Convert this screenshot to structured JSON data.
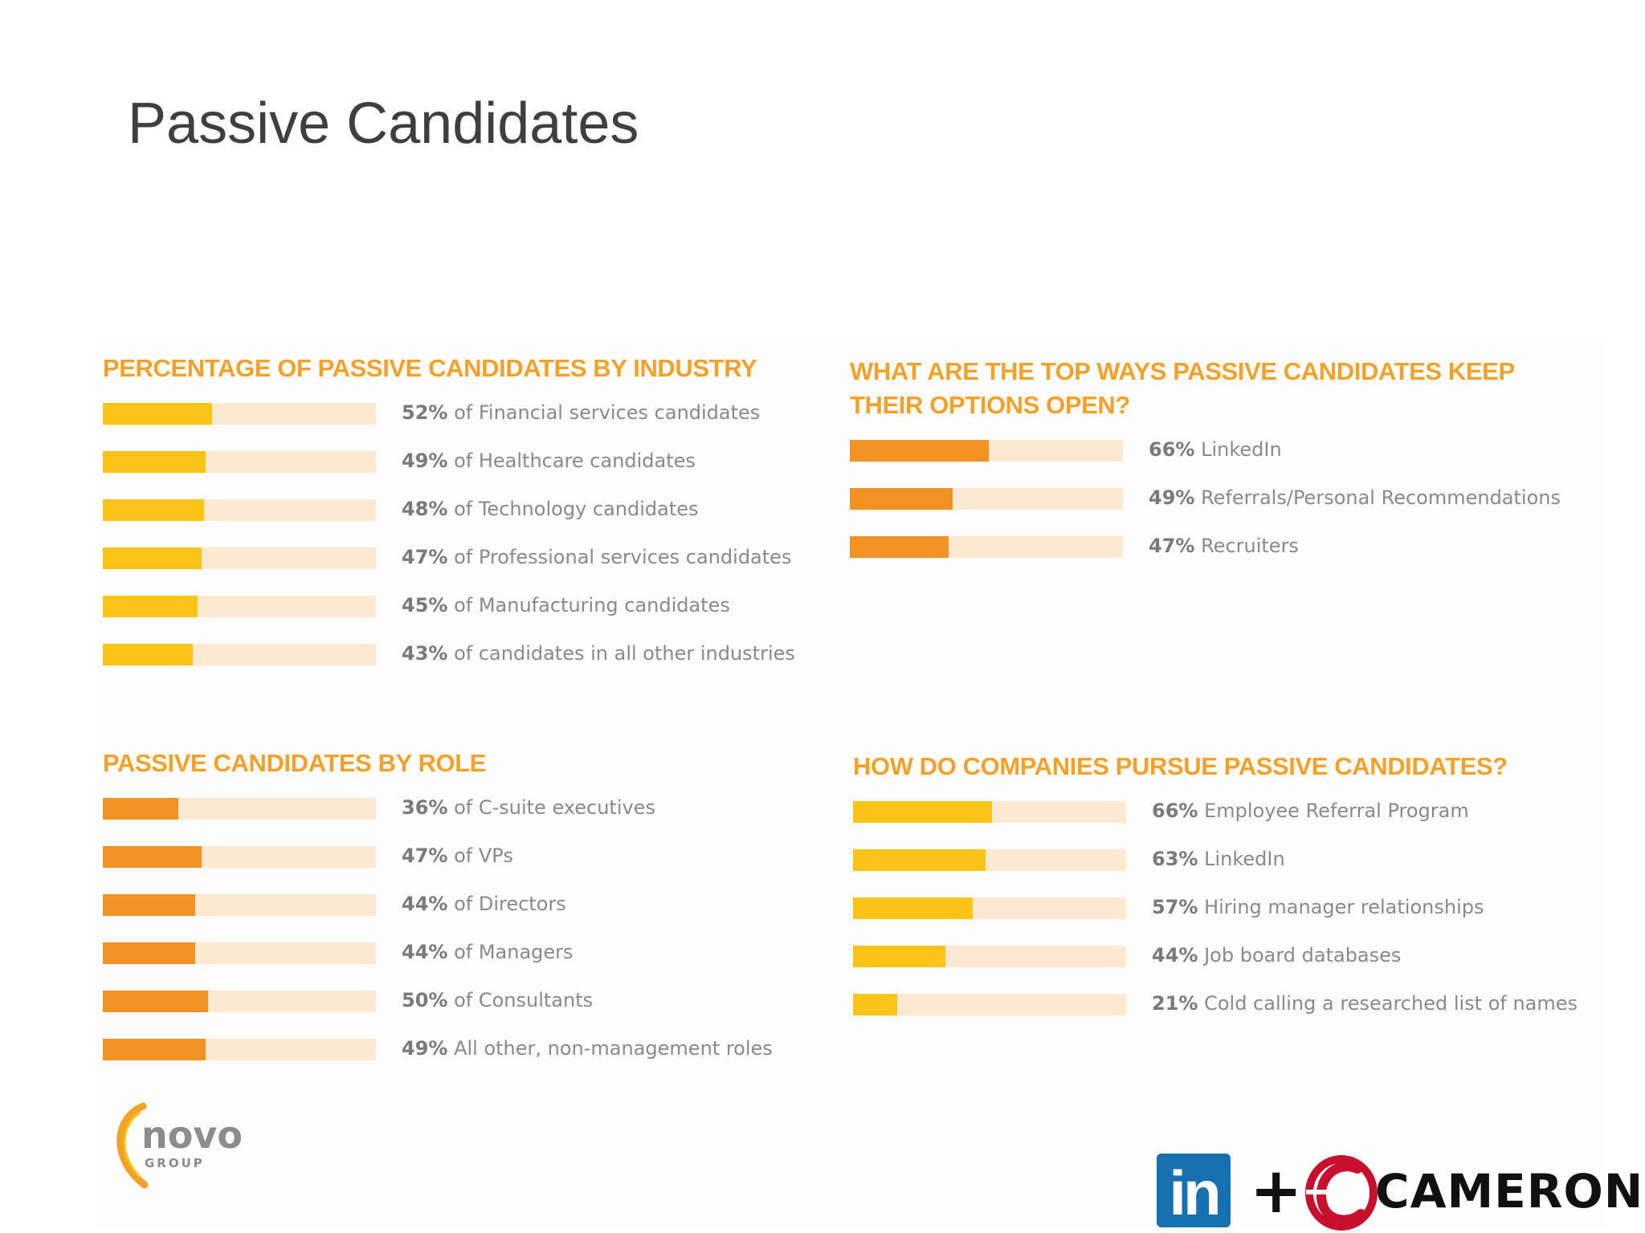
{
  "slide": {
    "title": "Passive Candidates"
  },
  "colors": {
    "yellow_fill": "#fcc418",
    "orange_fill": "#f39224",
    "track": "#fde8d1",
    "title_orange": "#f4a12a",
    "label_gray": "#8a8a8a"
  },
  "chart_data": [
    {
      "type": "bar",
      "orientation": "horizontal",
      "title": "PERCENTAGE OF PASSIVE CANDIDATES BY INDUSTRY",
      "fill_color": "#fcc418",
      "xlim": [
        0,
        100
      ],
      "unit": "%",
      "items": [
        {
          "value": 52,
          "label": "of Financial services candidates"
        },
        {
          "value": 49,
          "label": "of Healthcare candidates"
        },
        {
          "value": 48,
          "label": "of Technology candidates"
        },
        {
          "value": 47,
          "label": "of Professional services candidates"
        },
        {
          "value": 45,
          "label": "of Manufacturing candidates"
        },
        {
          "value": 43,
          "label": "of candidates in all other industries"
        }
      ]
    },
    {
      "type": "bar",
      "orientation": "horizontal",
      "title": "WHAT ARE THE TOP WAYS PASSIVE CANDIDATES KEEP THEIR OPTIONS OPEN?",
      "title_lines": [
        "WHAT ARE THE TOP WAYS PASSIVE CANDIDATES KEEP",
        "THEIR OPTIONS OPEN?"
      ],
      "fill_color": "#f39224",
      "xlim": [
        0,
        100
      ],
      "unit": "%",
      "items": [
        {
          "value": 66,
          "label": "LinkedIn"
        },
        {
          "value": 49,
          "label": "Referrals/Personal Recommendations"
        },
        {
          "value": 47,
          "label": "Recruiters"
        }
      ]
    },
    {
      "type": "bar",
      "orientation": "horizontal",
      "title": "PASSIVE CANDIDATES BY ROLE",
      "fill_color": "#f39224",
      "xlim": [
        0,
        100
      ],
      "unit": "%",
      "items": [
        {
          "value": 36,
          "label": "of C-suite executives"
        },
        {
          "value": 47,
          "label": "of VPs"
        },
        {
          "value": 44,
          "label": "of Directors"
        },
        {
          "value": 44,
          "label": "of Managers"
        },
        {
          "value": 50,
          "label": "of Consultants"
        },
        {
          "value": 49,
          "label": "All other, non-management roles"
        }
      ]
    },
    {
      "type": "bar",
      "orientation": "horizontal",
      "title": "HOW DO COMPANIES PURSUE PASSIVE CANDIDATES?",
      "fill_color": "#fcc418",
      "xlim": [
        0,
        100
      ],
      "unit": "%",
      "items": [
        {
          "value": 66,
          "label": "Employee Referral Program"
        },
        {
          "value": 63,
          "label": "LinkedIn"
        },
        {
          "value": 57,
          "label": "Hiring manager relationships"
        },
        {
          "value": 44,
          "label": "Job board databases"
        },
        {
          "value": 21,
          "label": "Cold calling a researched list of names"
        }
      ]
    }
  ],
  "logos": {
    "novo": {
      "name": "novo",
      "sub": "GROUP"
    },
    "linkedin": {
      "text": "in"
    },
    "plus": "+",
    "cameron": {
      "text": "CAMERON"
    }
  }
}
